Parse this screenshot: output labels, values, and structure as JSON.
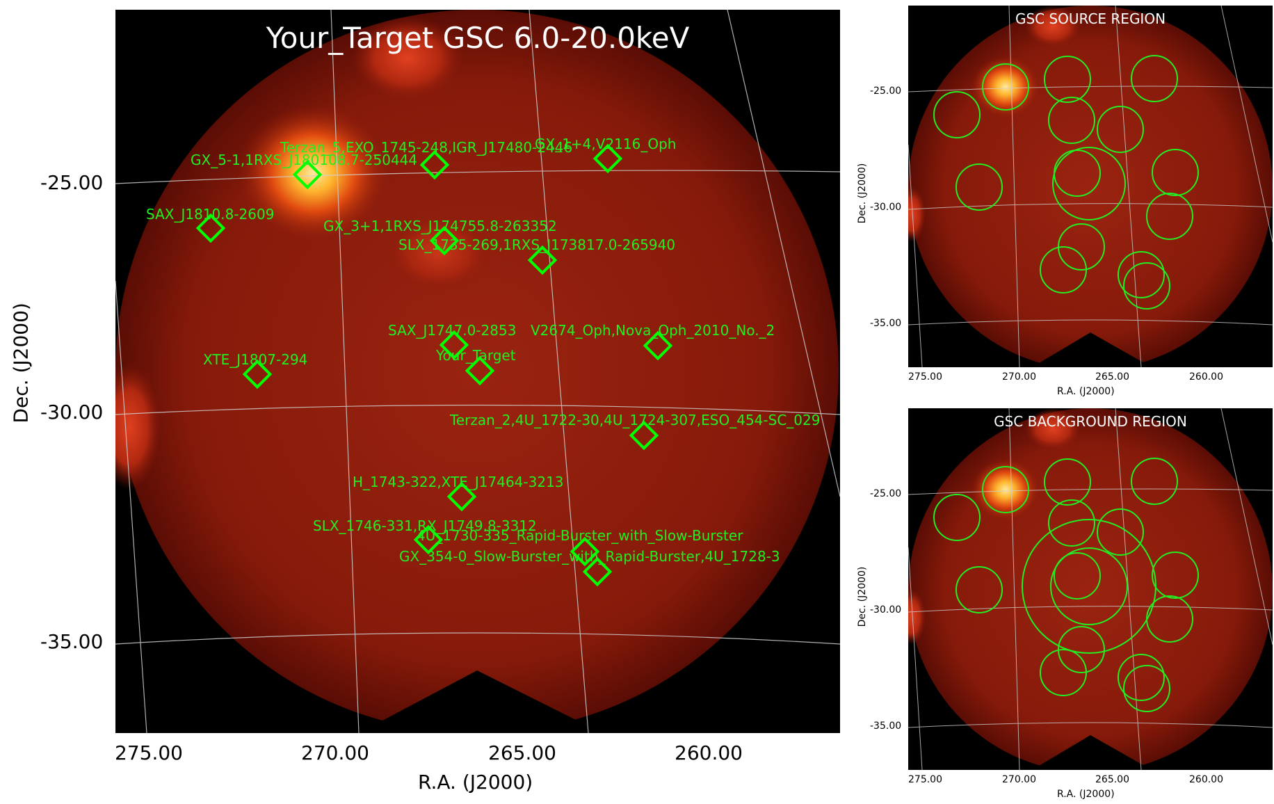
{
  "main": {
    "title": "Your_Target GSC 6.0-20.0keV",
    "xlabel": "R.A. (J2000)",
    "ylabel": "Dec. (J2000)",
    "xticks": [
      "275.00",
      "270.00",
      "265.00",
      "260.00"
    ],
    "yticks": [
      "-25.00",
      "-30.00",
      "-35.00"
    ],
    "sources": [
      "Terzan_5,EXO_1745-248,IGR_J17480-2446",
      "GX_1+4,V2116_Oph",
      "GX_5-1,1RXS_J180108.7-250444",
      "SAX_J1810.8-2609",
      "GX_3+1,1RXS_J174755.8-263352",
      "SLX_1735-269,1RXS_J173817.0-265940",
      "SAX_J1747.0-2853",
      "V2674_Oph,Nova_Oph_2010_No._2",
      "Your_Target",
      "XTE_J1807-294",
      "Terzan_2,4U_1722-30,4U_1724-307,ESO_454-SC_029",
      "H_1743-322,XTE_J17464-3213",
      "SLX_1746-331,RX_J1749.8-3312",
      "4U_1730-335_Rapid-Burster_with_Slow-Burster",
      "GX_354-0_Slow-Burster_with_Rapid-Burster,4U_1728-3"
    ]
  },
  "source_region": {
    "title": "GSC SOURCE REGION",
    "xlabel": "R.A. (J2000)",
    "ylabel": "Dec. (J2000)",
    "xticks": [
      "275.00",
      "270.00",
      "265.00",
      "260.00"
    ],
    "yticks": [
      "-25.00",
      "-30.00",
      "-35.00"
    ]
  },
  "background_region": {
    "title": "GSC BACKGROUND REGION",
    "xlabel": "R.A. (J2000)",
    "ylabel": "Dec. (J2000)",
    "xticks": [
      "275.00",
      "270.00",
      "265.00",
      "260.00"
    ],
    "yticks": [
      "-25.00",
      "-30.00",
      "-35.00"
    ]
  },
  "colors": {
    "marker": "#00ff00",
    "label": "#22ee22",
    "background": "#000000",
    "field": "#8a1a0a"
  }
}
